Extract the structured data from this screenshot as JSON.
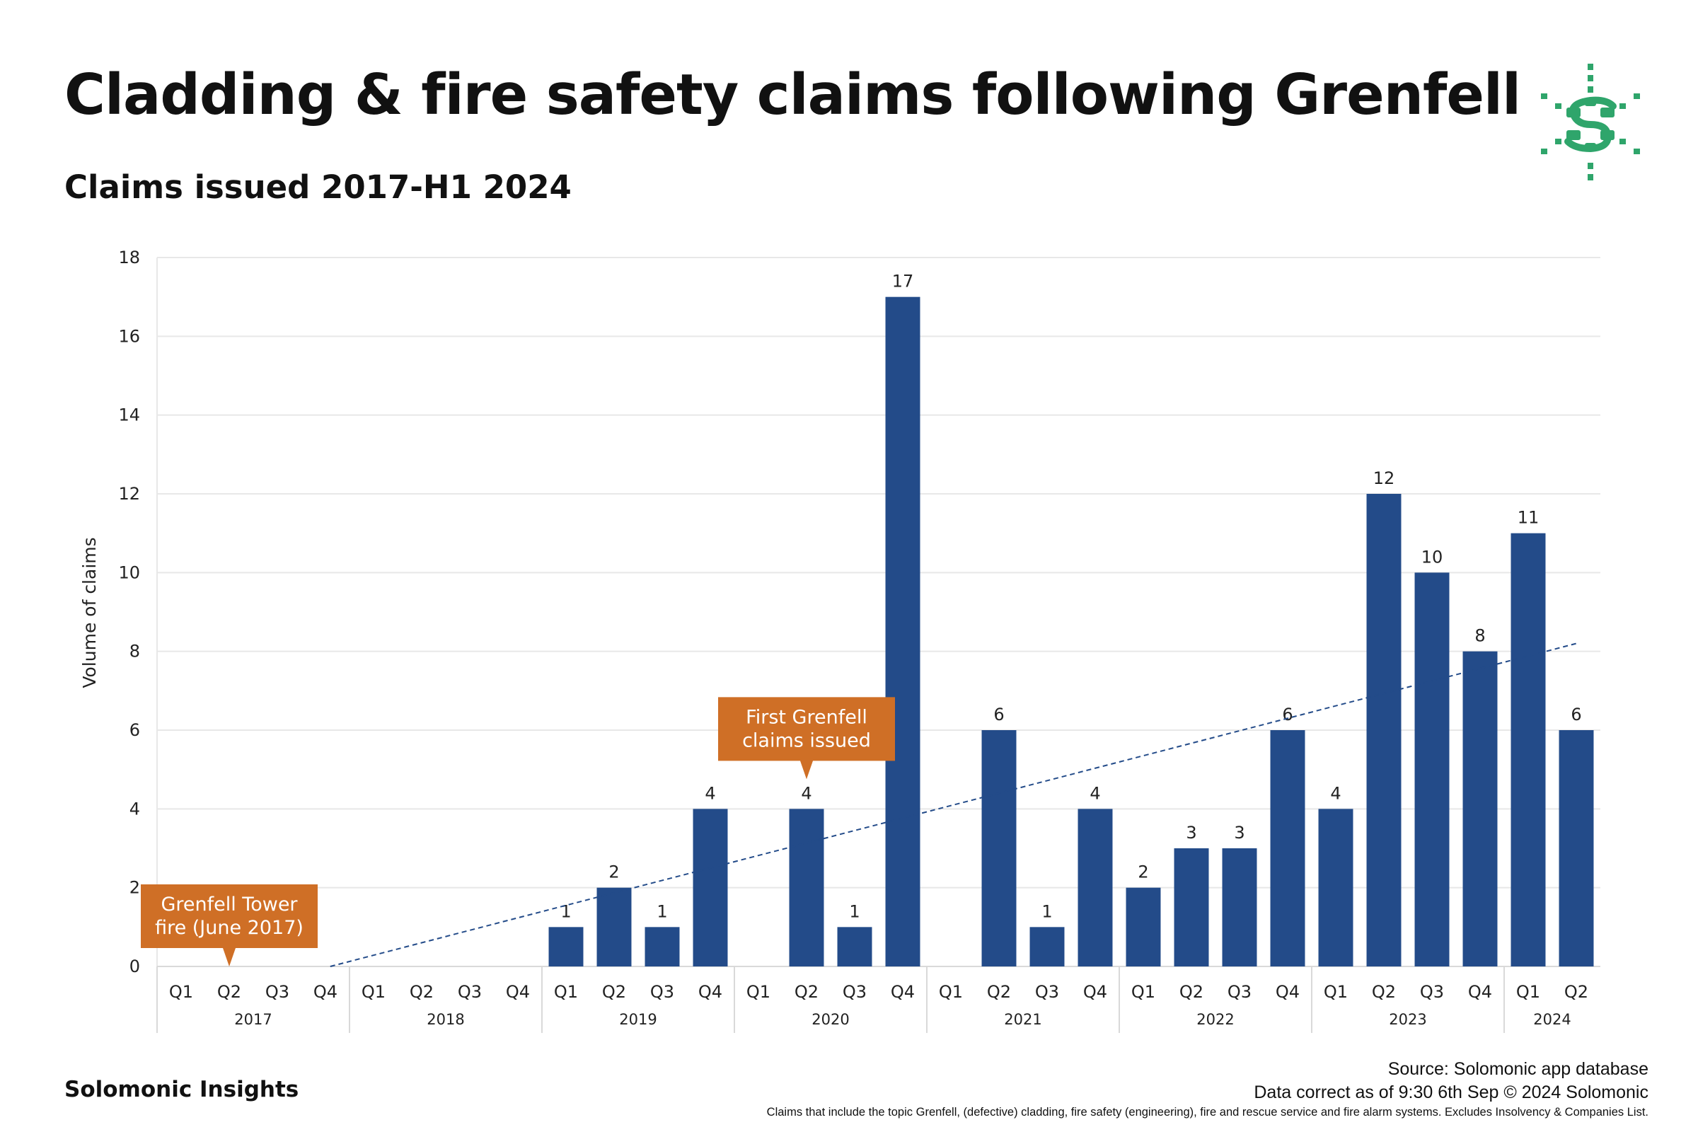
{
  "header": {
    "title": "Cladding & fire safety claims following Grenfell",
    "subtitle": "Claims issued 2017-H1 2024"
  },
  "brand": "Solomonic Insights",
  "footer": {
    "source": "Source: Solomonic app database",
    "as_of": "Data correct as of 9:30 6th Sep © 2024 Solomonic",
    "note": "Claims that include the topic Grenfell, (defective) cladding, fire safety (engineering), fire and rescue service and fire alarm systems. Excludes Insolvency & Companies List."
  },
  "colors": {
    "bar": "#234B89",
    "annotation": "#CF6F26",
    "logo": "#2FA56B",
    "grid": "#e8e8e8",
    "trend": "#234B89"
  },
  "chart_data": {
    "type": "bar",
    "title": "Cladding & fire safety claims following Grenfell",
    "subtitle": "Claims issued 2017-H1 2024",
    "xlabel": "",
    "ylabel": "Volume of claims",
    "ylim": [
      0,
      18
    ],
    "yticks": [
      0,
      2,
      4,
      6,
      8,
      10,
      12,
      14,
      16,
      18
    ],
    "grid": true,
    "categories": [
      "Q1",
      "Q2",
      "Q3",
      "Q4",
      "Q1",
      "Q2",
      "Q3",
      "Q4",
      "Q1",
      "Q2",
      "Q3",
      "Q4",
      "Q1",
      "Q2",
      "Q3",
      "Q4",
      "Q1",
      "Q2",
      "Q3",
      "Q4",
      "Q1",
      "Q2",
      "Q3",
      "Q4",
      "Q1",
      "Q2",
      "Q3",
      "Q4",
      "Q1",
      "Q2"
    ],
    "years": [
      {
        "label": "2017",
        "start": 0,
        "end": 3
      },
      {
        "label": "2018",
        "start": 4,
        "end": 7
      },
      {
        "label": "2019",
        "start": 8,
        "end": 11
      },
      {
        "label": "2020",
        "start": 12,
        "end": 15
      },
      {
        "label": "2021",
        "start": 16,
        "end": 19
      },
      {
        "label": "2022",
        "start": 20,
        "end": 23
      },
      {
        "label": "2023",
        "start": 24,
        "end": 27
      },
      {
        "label": "2024",
        "start": 28,
        "end": 29
      }
    ],
    "series": [
      {
        "name": "Claims issued",
        "values": [
          0,
          0,
          0,
          0,
          0,
          0,
          0,
          0,
          1,
          2,
          1,
          4,
          0,
          4,
          1,
          17,
          0,
          6,
          1,
          4,
          2,
          3,
          3,
          6,
          4,
          12,
          10,
          8,
          11,
          6
        ]
      }
    ],
    "trendline": {
      "from_index": 3,
      "from_value": 0,
      "to_index": 29,
      "to_value": 8.2
    },
    "annotations": [
      {
        "lines": [
          "Grenfell Tower",
          "fire (June 2017)"
        ],
        "category_index": 1,
        "value": 0
      },
      {
        "lines": [
          "First Grenfell",
          "claims issued"
        ],
        "category_index": 13,
        "value": 4
      }
    ]
  }
}
